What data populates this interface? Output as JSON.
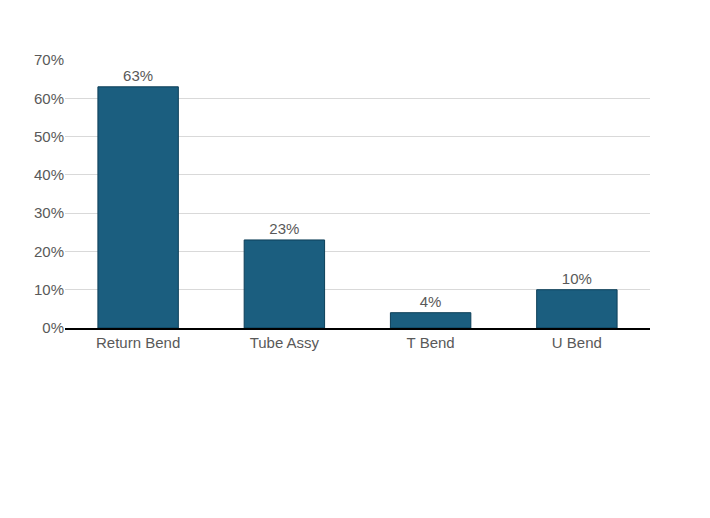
{
  "chart_data": {
    "type": "bar",
    "categories": [
      "Return Bend",
      "Tube Assy",
      "T Bend",
      "U Bend"
    ],
    "values": [
      63,
      23,
      4,
      10
    ],
    "value_labels": [
      "63%",
      "23%",
      "4%",
      "10%"
    ],
    "data_labels": true,
    "color": "#1b5e7f",
    "ylim": [
      0,
      70
    ],
    "yticks": [
      {
        "value": 0,
        "label": "0%"
      },
      {
        "value": 10,
        "label": "10%"
      },
      {
        "value": 20,
        "label": "20%"
      },
      {
        "value": 30,
        "label": "30%"
      },
      {
        "value": 40,
        "label": "40%"
      },
      {
        "value": 50,
        "label": "50%"
      },
      {
        "value": 60,
        "label": "60%"
      },
      {
        "value": 70,
        "label": "70%"
      }
    ],
    "grid": true
  }
}
